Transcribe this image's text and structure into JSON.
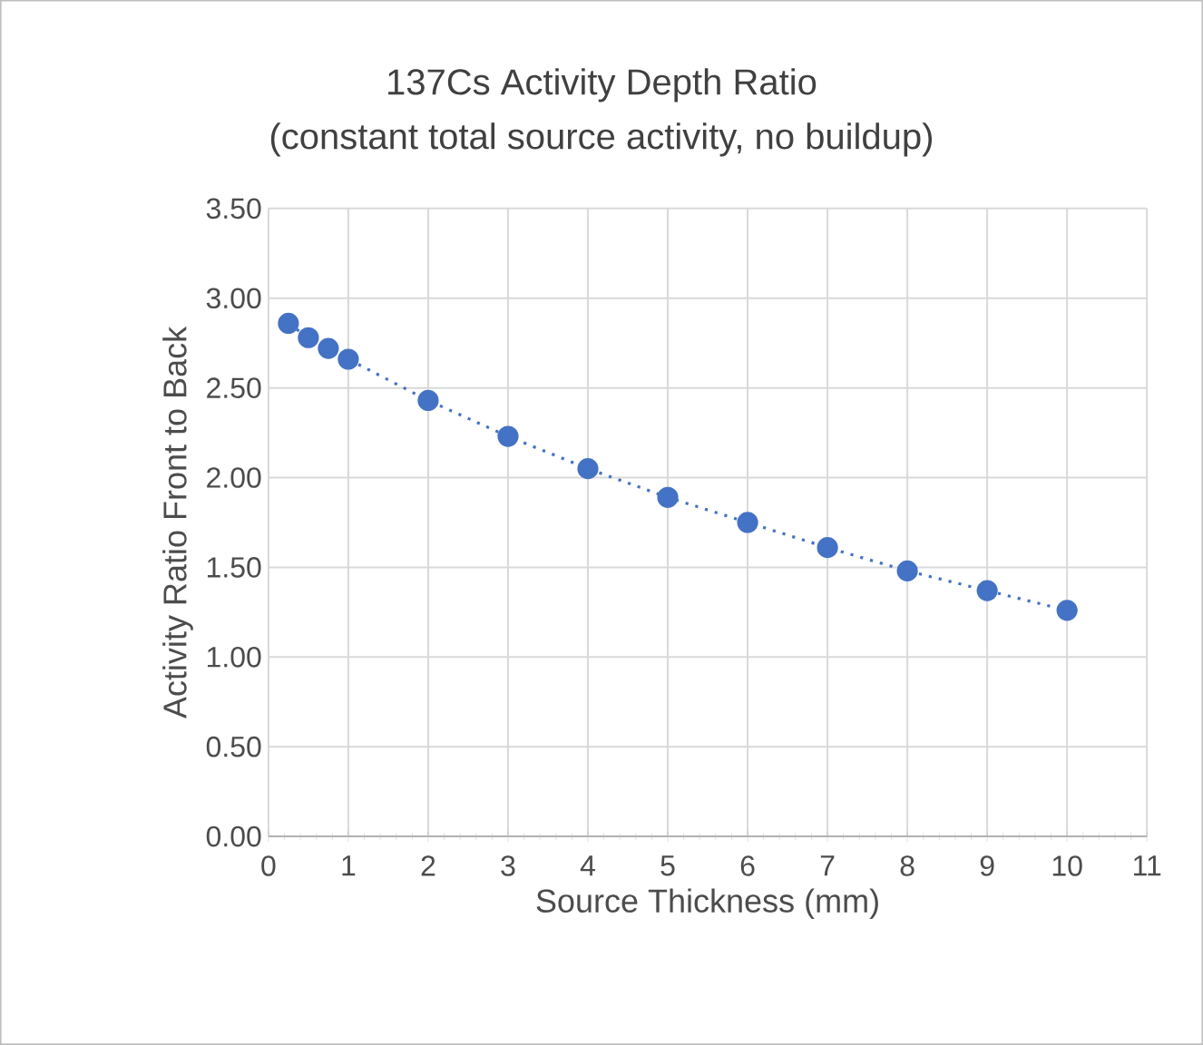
{
  "chart_data": {
    "type": "line",
    "title": "137Cs Activity Depth Ratio\n(constant total source activity, no buildup)",
    "xlabel": "Source Thickness (mm)",
    "ylabel": "Activity Ratio Front to Back",
    "series": [
      {
        "color": "#4472c4",
        "x": [
          0.25,
          0.5,
          0.75,
          1,
          2,
          3,
          4,
          5,
          6,
          7,
          8,
          9,
          10
        ],
        "values": [
          2.86,
          2.78,
          2.72,
          2.66,
          2.43,
          2.23,
          2.05,
          1.89,
          1.75,
          1.61,
          1.48,
          1.37,
          1.26
        ],
        "line_style": "dotted",
        "marker": "circle"
      }
    ],
    "xlim": [
      0,
      11
    ],
    "xticks": [
      0,
      1,
      2,
      3,
      4,
      5,
      6,
      7,
      8,
      9,
      10,
      11
    ],
    "ylim": [
      0,
      3.5
    ],
    "yticks": [
      {
        "value": 0,
        "label": "0.00"
      },
      {
        "value": 0.5,
        "label": "0.50"
      },
      {
        "value": 1,
        "label": "1.00"
      },
      {
        "value": 1.5,
        "label": "1.50"
      },
      {
        "value": 2,
        "label": "2.00"
      },
      {
        "value": 2.5,
        "label": "2.50"
      },
      {
        "value": 3,
        "label": "3.00"
      },
      {
        "value": 3.5,
        "label": "3.50"
      }
    ],
    "grid": true
  }
}
